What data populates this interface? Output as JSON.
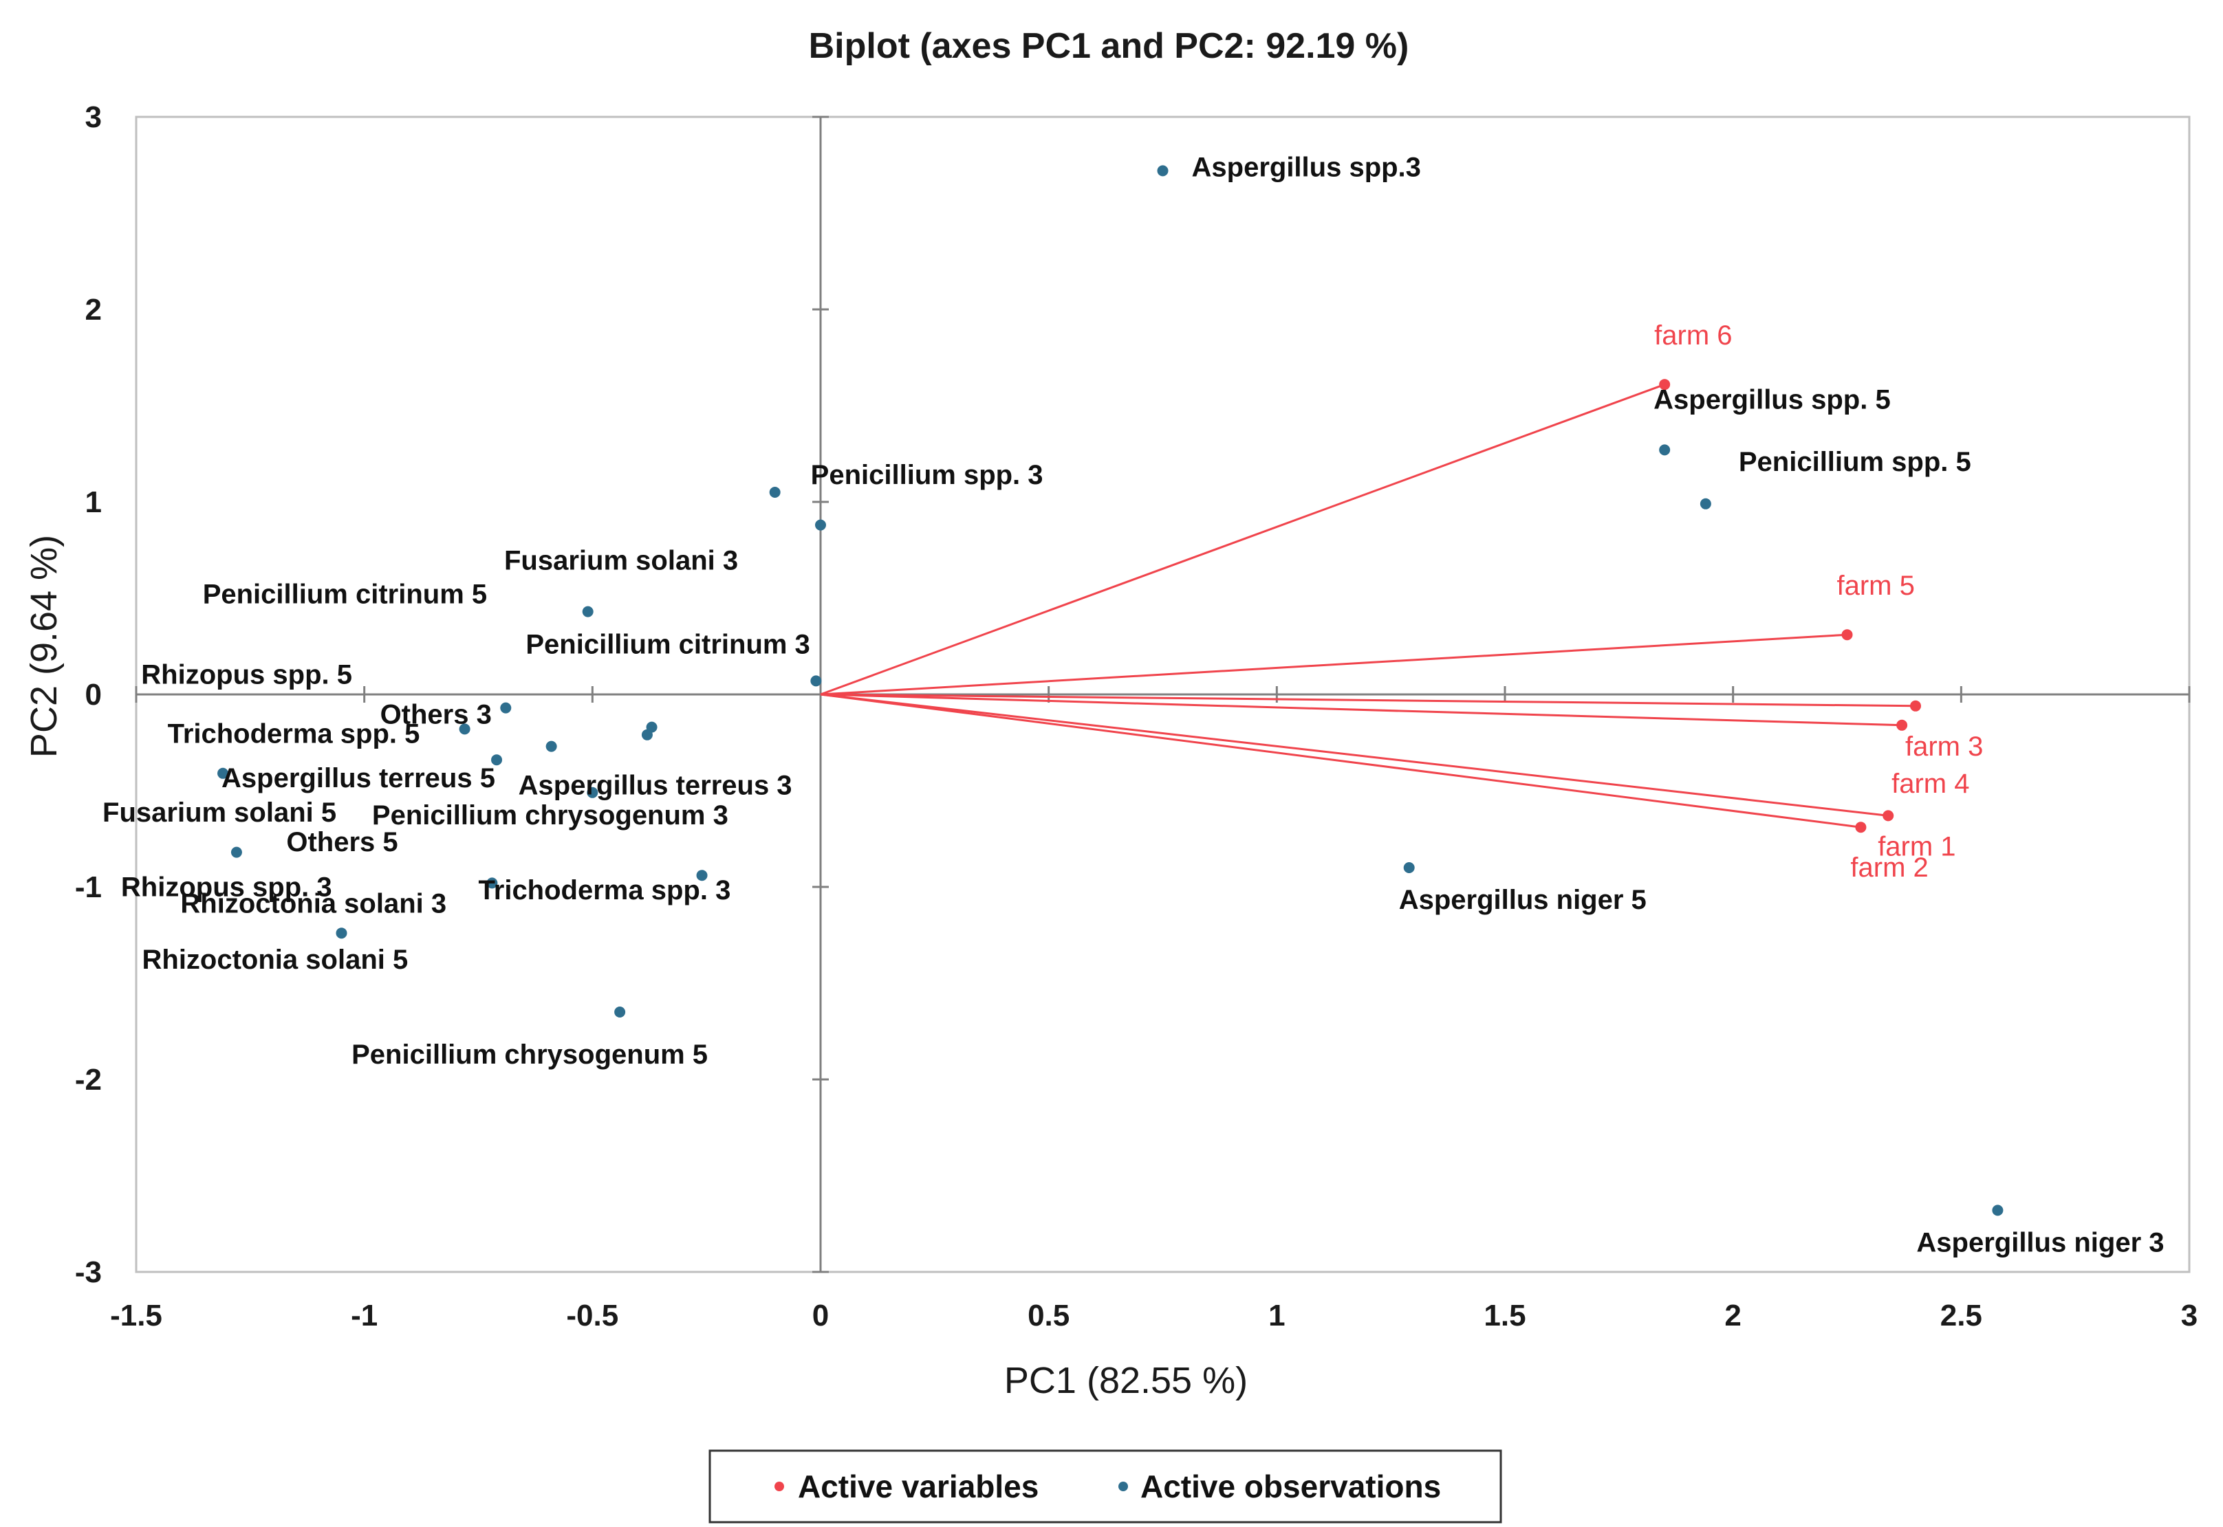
{
  "chart_data": {
    "type": "scatter",
    "title": "Biplot (axes PC1 and PC2: 92.19 %)",
    "xlabel": "PC1 (82.55 %)",
    "ylabel": "PC2 (9.64 %)",
    "xlim": [
      -1.5,
      3
    ],
    "ylim": [
      -3,
      3
    ],
    "xticks": [
      -1.5,
      -1,
      -0.5,
      0,
      0.5,
      1,
      1.5,
      2,
      2.5,
      3
    ],
    "xtick_labels": [
      "-1.5",
      "-1",
      "-0.5",
      "0",
      "0.5",
      "1",
      "1.5",
      "2",
      "2.5",
      "3"
    ],
    "yticks": [
      -3,
      -2,
      -1,
      0,
      1,
      2,
      3
    ],
    "ytick_labels": [
      "-3",
      "-2",
      "-1",
      "0",
      "1",
      "2",
      "3"
    ],
    "colors": {
      "variables": "#f0444c",
      "observations": "#2e6e8e",
      "axis": "#7f7f7f"
    },
    "variables": [
      {
        "name": "farm 6",
        "x": 1.85,
        "y": 1.61
      },
      {
        "name": "farm 5",
        "x": 2.25,
        "y": 0.31
      },
      {
        "name": "farm 3",
        "x": 2.4,
        "y": -0.06
      },
      {
        "name": "farm 4",
        "x": 2.37,
        "y": -0.16
      },
      {
        "name": "farm 1",
        "x": 2.34,
        "y": -0.63
      },
      {
        "name": "farm 2",
        "x": 2.28,
        "y": -0.69
      }
    ],
    "observations": [
      {
        "name": "Aspergillus spp.3",
        "x": 0.75,
        "y": 2.72
      },
      {
        "name": "Aspergillus spp. 5",
        "x": 1.85,
        "y": 1.27
      },
      {
        "name": "Penicillium spp. 5",
        "x": 1.94,
        "y": 0.99
      },
      {
        "name": "Penicillium spp. 3",
        "x": -0.1,
        "y": 1.05
      },
      {
        "name": "Fusarium solani 3",
        "x": 0.0,
        "y": 0.88
      },
      {
        "name": "Penicillium citrinum 5",
        "x": -0.51,
        "y": 0.43
      },
      {
        "name": "Penicillium citrinum 3",
        "x": -0.01,
        "y": 0.07
      },
      {
        "name": "Rhizopus spp. 5",
        "x": -0.69,
        "y": -0.07
      },
      {
        "name": "Others 3",
        "x": -0.37,
        "y": -0.17
      },
      {
        "name": "Trichoderma spp. 5",
        "x": -0.78,
        "y": -0.18
      },
      {
        "name": "Aspergillus terreus 5",
        "x": -0.71,
        "y": -0.34
      },
      {
        "name": "Aspergillus terreus 3",
        "x": -0.59,
        "y": -0.27
      },
      {
        "name": "Fusarium solani 5",
        "x": -1.31,
        "y": -0.41
      },
      {
        "name": "Others 5",
        "x": -0.5,
        "y": -0.51
      },
      {
        "name": "Penicillium chrysogenum 3",
        "x": -0.38,
        "y": -0.21
      },
      {
        "name": "Rhizopus spp. 3",
        "x": -1.28,
        "y": -0.82
      },
      {
        "name": "Rhizoctonia solani 3",
        "x": -0.72,
        "y": -0.98
      },
      {
        "name": "Trichoderma spp. 3",
        "x": -0.26,
        "y": -0.94
      },
      {
        "name": "Rhizoctonia solani 5",
        "x": -1.05,
        "y": -1.24
      },
      {
        "name": "Penicillium chrysogenum 5",
        "x": -0.44,
        "y": -1.65
      },
      {
        "name": "Aspergillus niger 5",
        "x": 1.29,
        "y": -0.9
      },
      {
        "name": "Aspergillus niger 3",
        "x": 2.58,
        "y": -2.68
      }
    ],
    "legend": {
      "position": "bottom",
      "entries": [
        "Active variables",
        "Active observations"
      ]
    }
  }
}
